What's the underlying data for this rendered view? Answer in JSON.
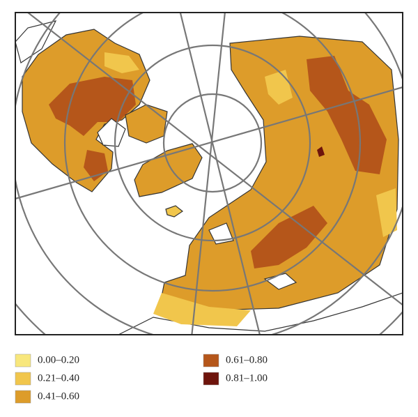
{
  "legend": [
    {
      "label": "0.00–0.20",
      "color": "#f8e77c"
    },
    {
      "label": "0.21–0.40",
      "color": "#f1c64c"
    },
    {
      "label": "0.41–0.60",
      "color": "#dd9c2a"
    },
    {
      "label": "0.61–0.80",
      "color": "#b5561a"
    },
    {
      "label": "0.81–1.00",
      "color": "#6e140c"
    }
  ]
}
